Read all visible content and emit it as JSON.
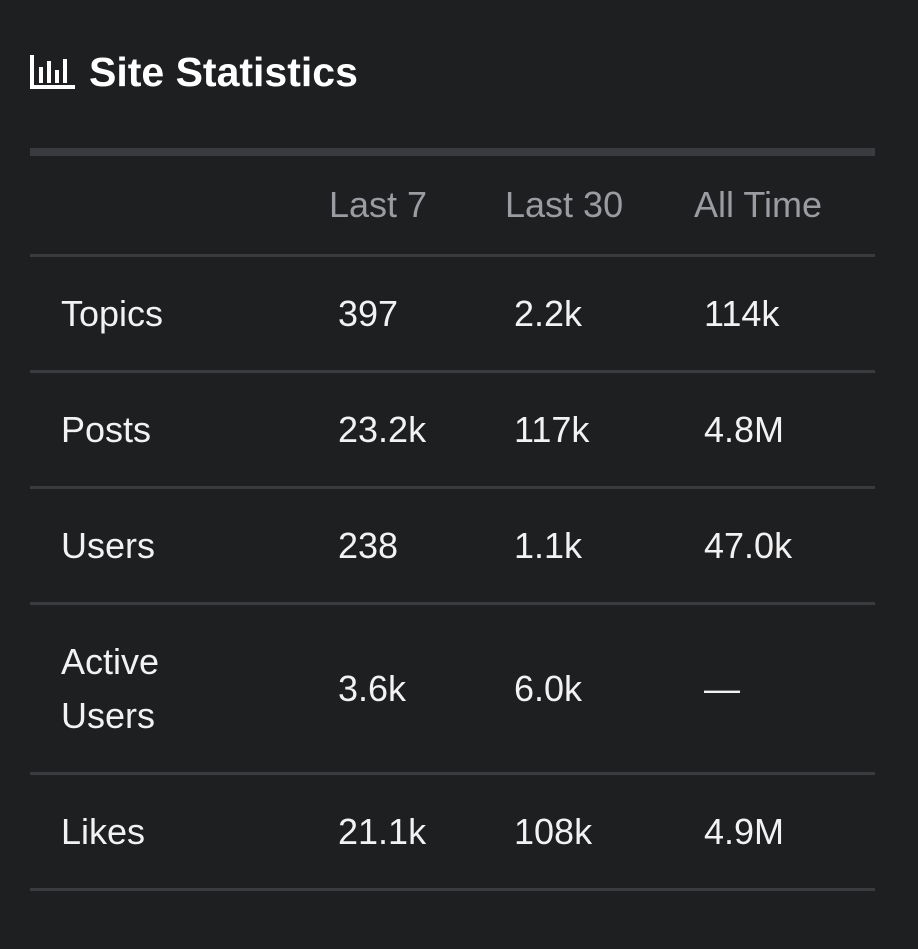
{
  "header": {
    "title": "Site Statistics"
  },
  "table": {
    "columns": [
      "Last 7",
      "Last 30",
      "All Time"
    ],
    "rows": [
      [
        "Topics",
        "397",
        "2.2k",
        "114k"
      ],
      [
        "Posts",
        "23.2k",
        "117k",
        "4.8M"
      ],
      [
        "Users",
        "238",
        "1.1k",
        "47.0k"
      ],
      [
        "Active Users",
        "3.6k",
        "6.0k",
        "—"
      ],
      [
        "Likes",
        "21.1k",
        "108k",
        "4.9M"
      ]
    ]
  }
}
